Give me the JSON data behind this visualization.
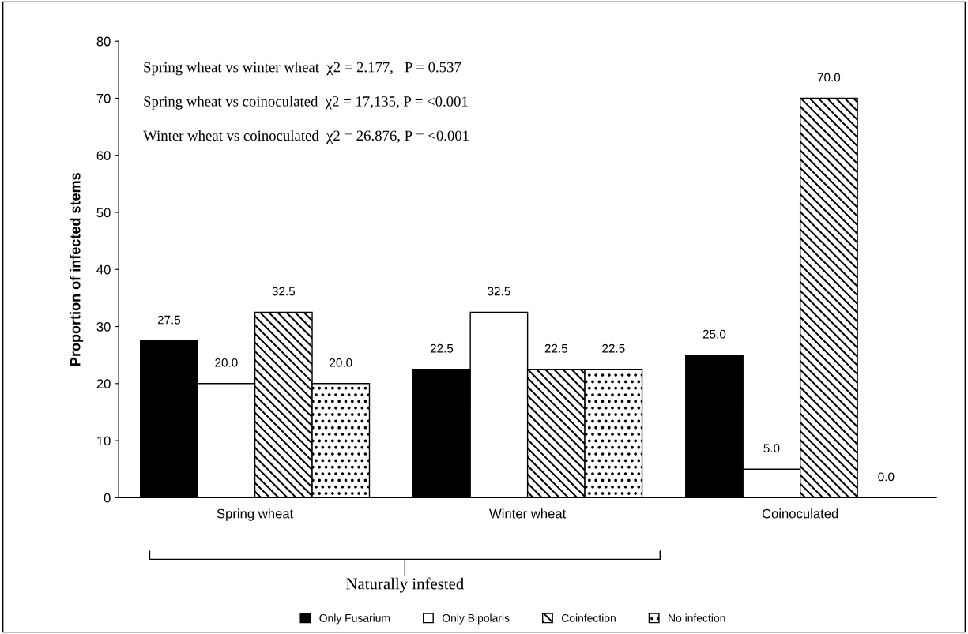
{
  "chart_data": {
    "type": "bar",
    "ylabel": "Proportion of infected stems",
    "categories": [
      "Spring wheat",
      "Winter wheat",
      "Coinoculated"
    ],
    "series": [
      {
        "name": "Only Fusarium",
        "color": "#000000",
        "values": [
          27.5,
          22.5,
          25.0
        ],
        "value_labels": [
          "27.5",
          "22.5",
          "25.0"
        ]
      },
      {
        "name": "Only Bipolaris",
        "color": "#ffffff",
        "values": [
          20.0,
          32.5,
          5.0
        ],
        "value_labels": [
          "20.0",
          "32.5",
          "5.0"
        ]
      },
      {
        "name": "Coinfection",
        "color": "#000000",
        "values": [
          32.5,
          22.5,
          70.0
        ],
        "value_labels": [
          "32.5",
          "22.5",
          "70.0"
        ]
      },
      {
        "name": "No infection",
        "color": "#000000",
        "values": [
          20.0,
          22.5,
          0.0
        ],
        "value_labels": [
          "20.0",
          "22.5",
          "0.0"
        ]
      }
    ],
    "ylim": [
      0,
      80
    ],
    "yticks": [
      0,
      10,
      20,
      30,
      40,
      50,
      60,
      70,
      80
    ],
    "grid": false,
    "legend": "bottom",
    "annotations": [
      "Spring wheat vs winter wheat  χ2 = 2.177,   P = 0.537",
      "Spring wheat vs coinoculated  χ2 = 17,135, P = <0.001",
      "Winter wheat vs coinoculated  χ2 = 26.876, P = <0.001",
      "Naturally infested"
    ]
  }
}
